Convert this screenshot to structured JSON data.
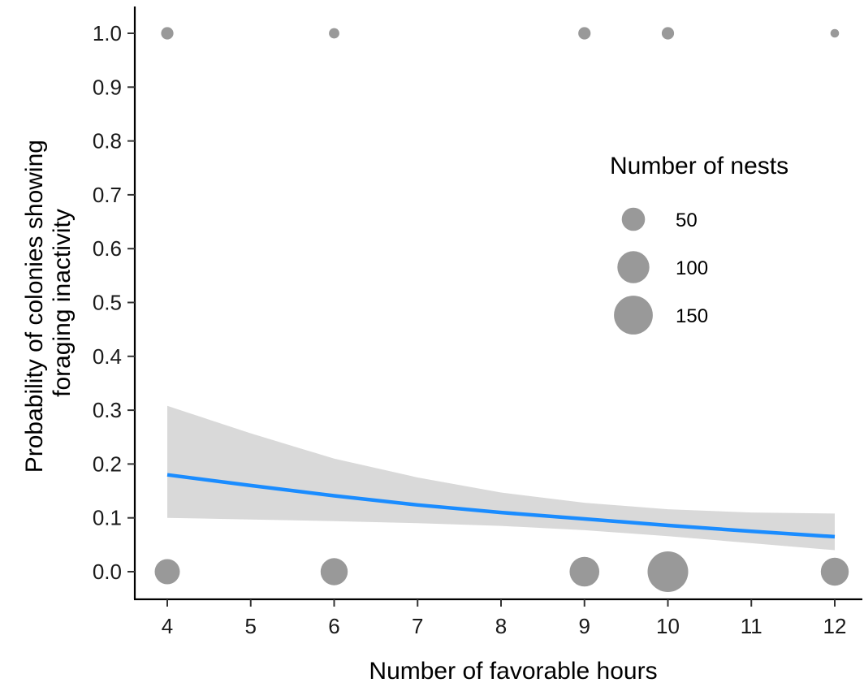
{
  "chart_data": {
    "type": "scatter",
    "xlabel": "Number of favorable hours",
    "ylabel_lines": [
      "Probability of colonies showing",
      "foraging inactivity"
    ],
    "xlim": [
      3.6,
      12.3
    ],
    "ylim": [
      -0.05,
      1.05
    ],
    "x_ticks": [
      4,
      5,
      6,
      7,
      8,
      9,
      10,
      11,
      12
    ],
    "y_ticks": [
      0.0,
      0.1,
      0.2,
      0.3,
      0.4,
      0.5,
      0.6,
      0.7,
      0.8,
      0.9,
      1.0
    ],
    "y_tick_labels": [
      "0.0",
      "0.1",
      "0.2",
      "0.3",
      "0.4",
      "0.5",
      "0.6",
      "0.7",
      "0.8",
      "0.9",
      "1.0"
    ],
    "points": [
      {
        "x": 4,
        "y": 1,
        "n": 12
      },
      {
        "x": 6,
        "y": 1,
        "n": 8
      },
      {
        "x": 9,
        "y": 1,
        "n": 12
      },
      {
        "x": 10,
        "y": 1,
        "n": 12
      },
      {
        "x": 12,
        "y": 1,
        "n": 5
      },
      {
        "x": 4,
        "y": 0,
        "n": 60
      },
      {
        "x": 6,
        "y": 0,
        "n": 70
      },
      {
        "x": 9,
        "y": 0,
        "n": 85
      },
      {
        "x": 10,
        "y": 0,
        "n": 165
      },
      {
        "x": 12,
        "y": 0,
        "n": 75
      }
    ],
    "fit": {
      "x": [
        4,
        5,
        6,
        7,
        8,
        9,
        10,
        11,
        12
      ],
      "y": [
        0.18,
        0.16,
        0.141,
        0.124,
        0.11,
        0.098,
        0.086,
        0.075,
        0.065
      ],
      "lower": [
        0.1,
        0.097,
        0.094,
        0.09,
        0.085,
        0.077,
        0.066,
        0.053,
        0.04
      ],
      "upper": [
        0.308,
        0.257,
        0.21,
        0.175,
        0.147,
        0.128,
        0.116,
        0.11,
        0.108
      ]
    },
    "legend": {
      "title": "Number of nests",
      "entries": [
        {
          "label": "50",
          "n": 50
        },
        {
          "label": "100",
          "n": 100
        },
        {
          "label": "150",
          "n": 150
        }
      ],
      "position": "right"
    },
    "colors": {
      "point": "#999999",
      "line": "#1a8cff",
      "ribbon": "#d9d9d9",
      "axis": "#000000"
    },
    "grid": false
  }
}
